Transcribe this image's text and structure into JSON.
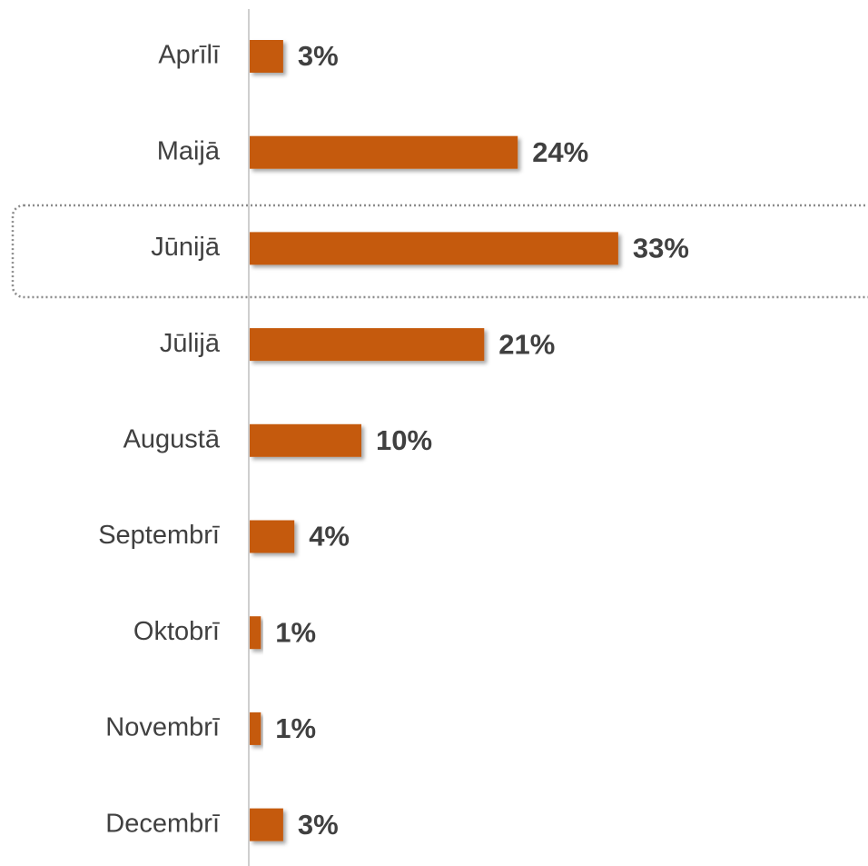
{
  "chart_data": {
    "type": "bar",
    "orientation": "horizontal",
    "categories": [
      "Aprīlī",
      "Maijā",
      "Jūnijā",
      "Jūlijā",
      "Augustā",
      "Septembrī",
      "Oktobrī",
      "Novembrī",
      "Decembrī"
    ],
    "values": [
      3,
      24,
      33,
      21,
      10,
      4,
      1,
      1,
      3
    ],
    "value_labels": [
      "3%",
      "24%",
      "33%",
      "21%",
      "10%",
      "4%",
      "1%",
      "1%",
      "3%"
    ],
    "color": "#c55a11"
  }
}
